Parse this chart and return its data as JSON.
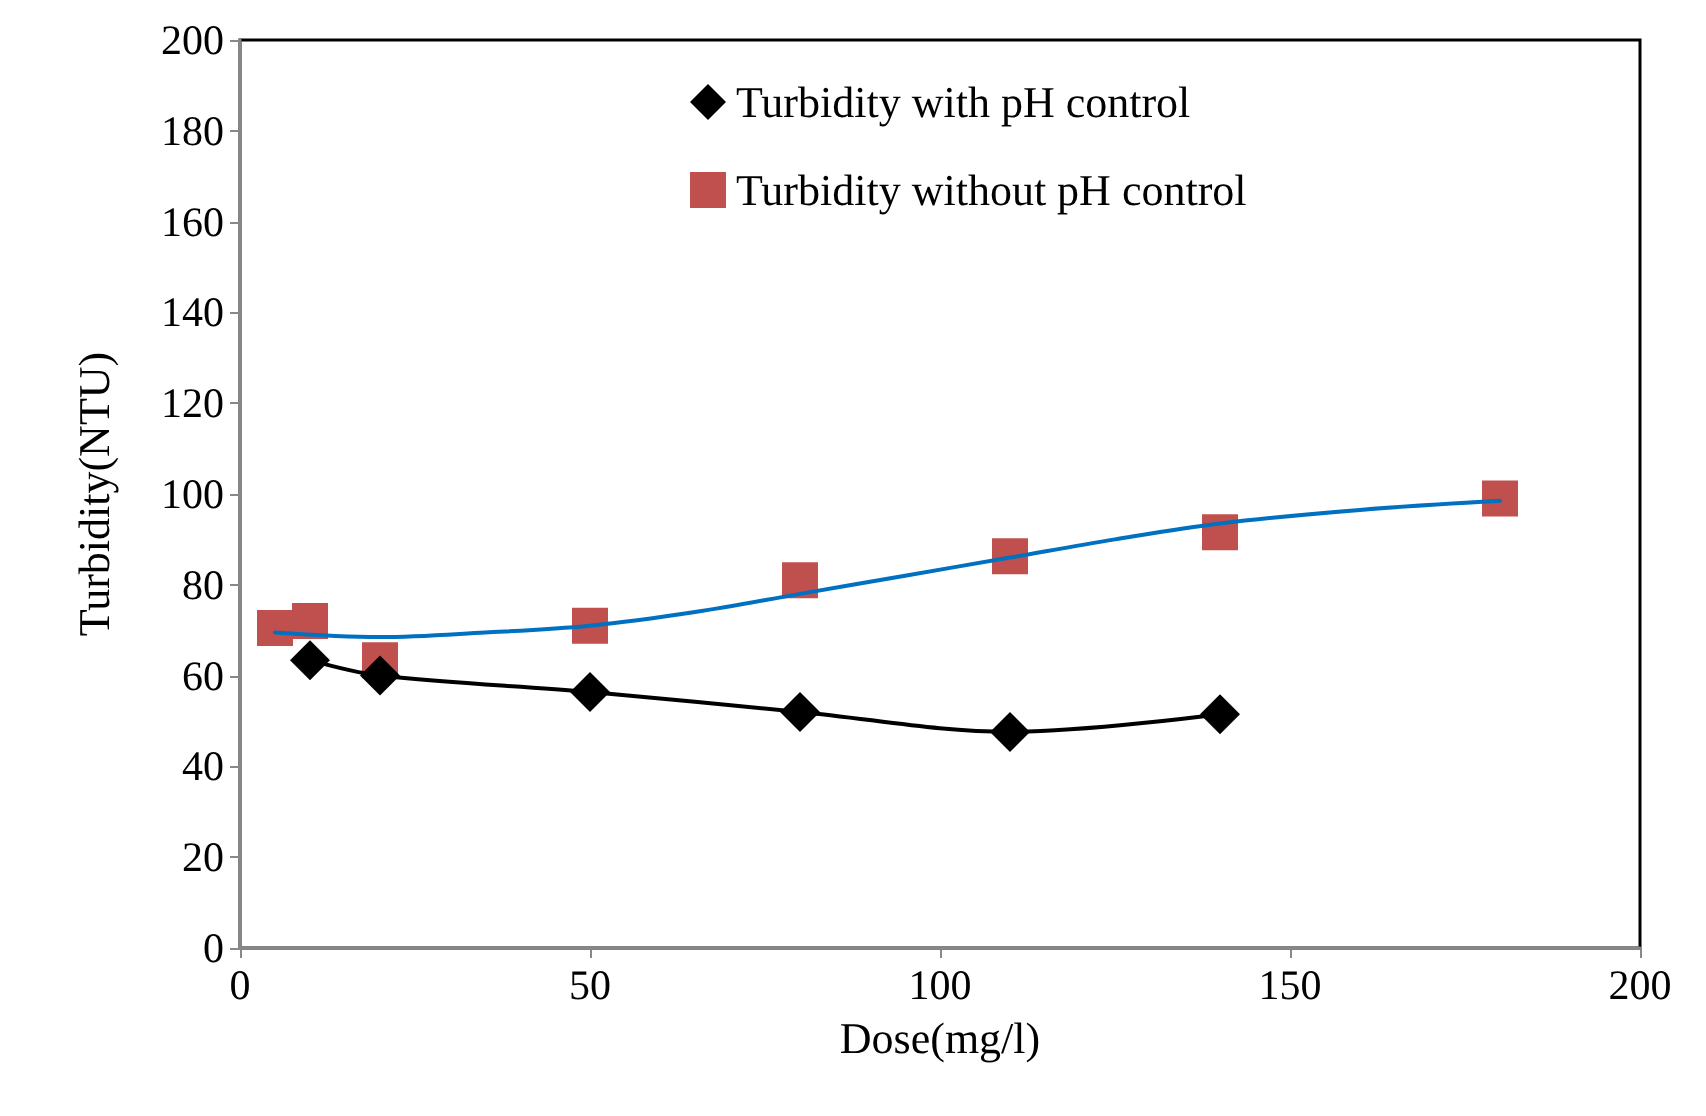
{
  "chart_data": {
    "type": "scatter",
    "xlabel": "Dose(mg/l)",
    "ylabel": "Turbidity(NTU)",
    "xlim": [
      0,
      200
    ],
    "xticks": [
      0,
      50,
      100,
      150,
      200
    ],
    "ylim": [
      0,
      200
    ],
    "yticks": [
      0,
      20,
      40,
      60,
      80,
      100,
      120,
      140,
      160,
      180,
      200
    ],
    "grid": false,
    "legend": "top",
    "series": [
      {
        "name": "Turbidity with pH control",
        "type": "line",
        "color": "#000000",
        "marker": "diamond",
        "line_style": "solid",
        "x": [
          10,
          20,
          50,
          80,
          110,
          140
        ],
        "values": [
          63.4,
          60,
          56.4,
          52,
          47.6,
          51.5
        ]
      },
      {
        "name": "Turbidity without pH control",
        "color": "#c0504d",
        "marker": "square",
        "x": [
          5,
          10,
          20,
          50,
          80,
          110,
          140,
          180
        ],
        "values": [
          70.5,
          72,
          63.4,
          71,
          81,
          86.3,
          91.6,
          99
        ]
      },
      {
        "type": "line",
        "color": "#0070c0",
        "marker": "none",
        "line_style": "solid",
        "x": [
          5,
          20,
          35,
          50,
          65,
          80,
          95,
          110,
          125,
          140,
          160,
          180
        ],
        "values": [
          69.5,
          68.5,
          69.5,
          71,
          74,
          78,
          82,
          86,
          90,
          93.5,
          96.5,
          98.5
        ]
      }
    ]
  }
}
